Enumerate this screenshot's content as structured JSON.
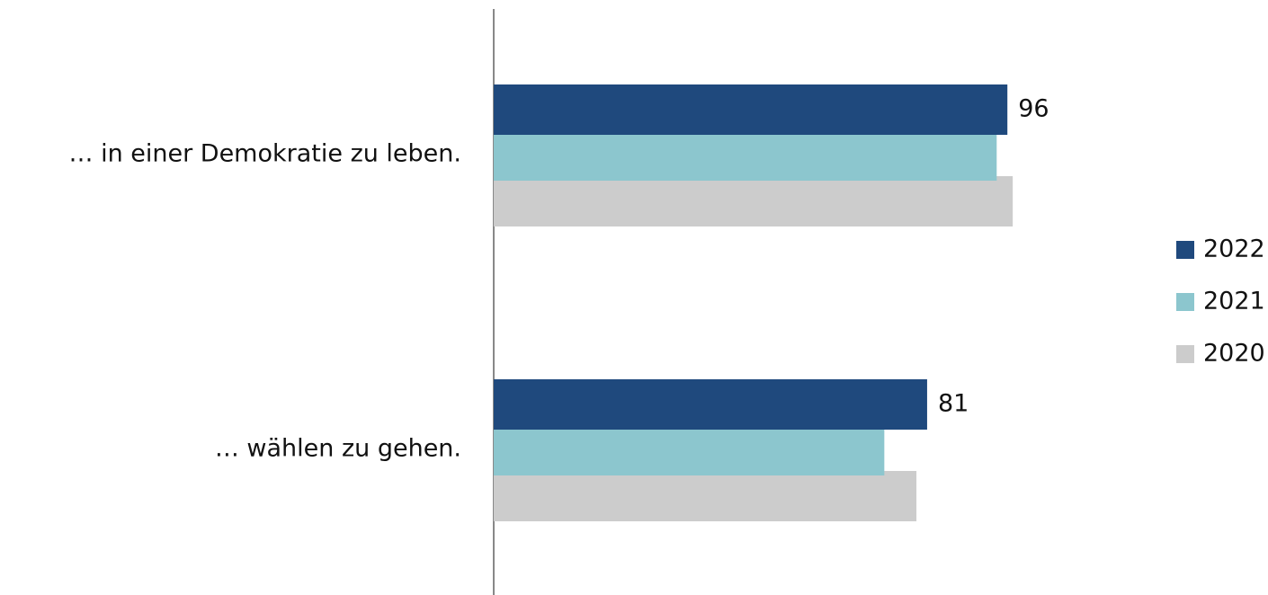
{
  "chart_data": {
    "type": "hbar",
    "categories": [
      "… in einer Demokratie zu leben.",
      "… wählen zu gehen."
    ],
    "series": [
      {
        "name": "2022",
        "color": "#1f497d",
        "values": [
          96,
          81
        ],
        "show_labels": true
      },
      {
        "name": "2021",
        "color": "#8cc6ce",
        "values": [
          94,
          73
        ],
        "show_labels": false
      },
      {
        "name": "2020",
        "color": "#cccccc",
        "values": [
          97,
          79
        ],
        "show_labels": false
      }
    ],
    "xlim": [
      0,
      100
    ],
    "legend": "right"
  }
}
